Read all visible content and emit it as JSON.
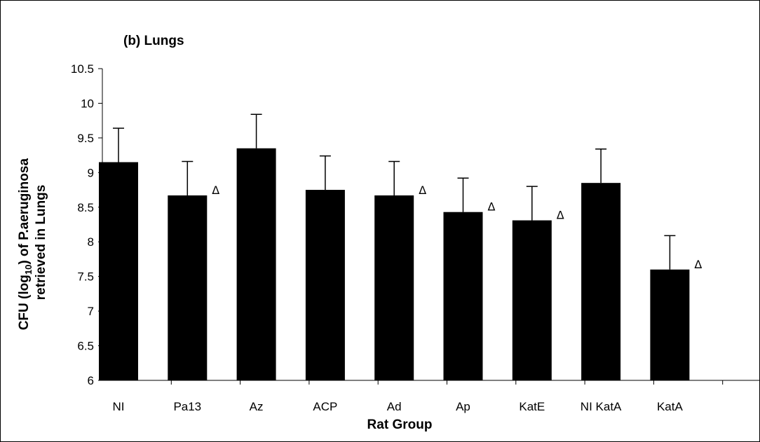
{
  "chart_data": {
    "type": "bar",
    "title": "(b) Lungs",
    "xlabel": "Rat Group",
    "ylabel_parts": {
      "line1_pre": "CFU (log",
      "line1_sub": "10",
      "line1_post": ") of P.aeruginosa",
      "line2": "retrieved in Lungs"
    },
    "ylim": [
      6,
      10.5
    ],
    "yticks": [
      "6",
      "6.5",
      "7",
      "7.5",
      "8",
      "8.5",
      "9",
      "9.5",
      "10",
      "10.5"
    ],
    "ytick_values": [
      6,
      6.5,
      7,
      7.5,
      8,
      8.5,
      9,
      9.5,
      10,
      10.5
    ],
    "categories": [
      "NI",
      "Pa13",
      "Az",
      "ACP",
      "Ad",
      "Ap",
      "KatE",
      "NI KatA",
      "KatA"
    ],
    "values": [
      9.15,
      8.67,
      9.35,
      8.75,
      8.67,
      8.43,
      8.31,
      8.85,
      7.6
    ],
    "errors": [
      0.49,
      0.49,
      0.49,
      0.49,
      0.49,
      0.49,
      0.49,
      0.49,
      0.49
    ],
    "significance_marker": "Δ",
    "significant": [
      false,
      true,
      false,
      false,
      true,
      true,
      true,
      false,
      true
    ],
    "bar_color": "#000000"
  }
}
